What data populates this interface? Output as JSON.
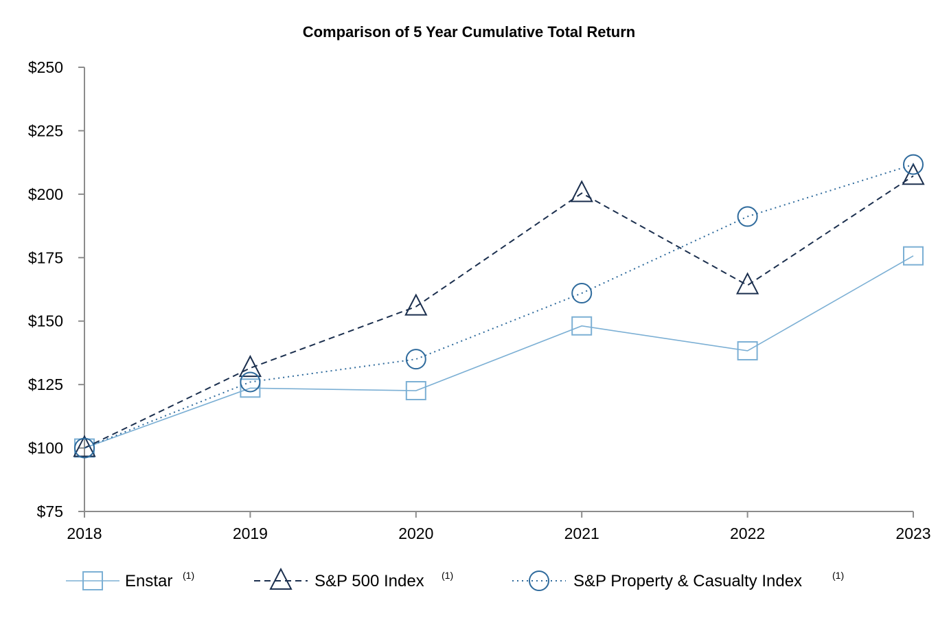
{
  "chart_data": {
    "type": "line",
    "title": "Comparison of 5 Year Cumulative Total Return",
    "xlabel": "",
    "ylabel": "",
    "categories": [
      "2018",
      "2019",
      "2020",
      "2021",
      "2022",
      "2023"
    ],
    "ylim": [
      75,
      250
    ],
    "yticks": [
      75,
      100,
      125,
      150,
      175,
      200,
      225,
      250
    ],
    "ytick_labels": [
      "$75",
      "$100",
      "$125",
      "$150",
      "$175",
      "$200",
      "$225",
      "$250"
    ],
    "grid": false,
    "legend_position": "bottom",
    "series": [
      {
        "name": "Enstar",
        "footnote": "(1)",
        "values": [
          100,
          123.6,
          122.6,
          148.1,
          138.3,
          175.7
        ],
        "color": "#7BAFD4",
        "line_style": "solid",
        "marker": "square"
      },
      {
        "name": "S&P 500 Index",
        "footnote": "(1)",
        "values": [
          100,
          131.5,
          155.7,
          200.4,
          164.1,
          207.2
        ],
        "color": "#1B2F4E",
        "line_style": "dashed",
        "marker": "triangle"
      },
      {
        "name": "S&P Property & Casualty Index",
        "footnote": "(1)",
        "values": [
          100,
          126.0,
          135.0,
          161.0,
          191.2,
          211.7
        ],
        "color": "#2E6A9C",
        "line_style": "dotted",
        "marker": "circle"
      }
    ]
  }
}
